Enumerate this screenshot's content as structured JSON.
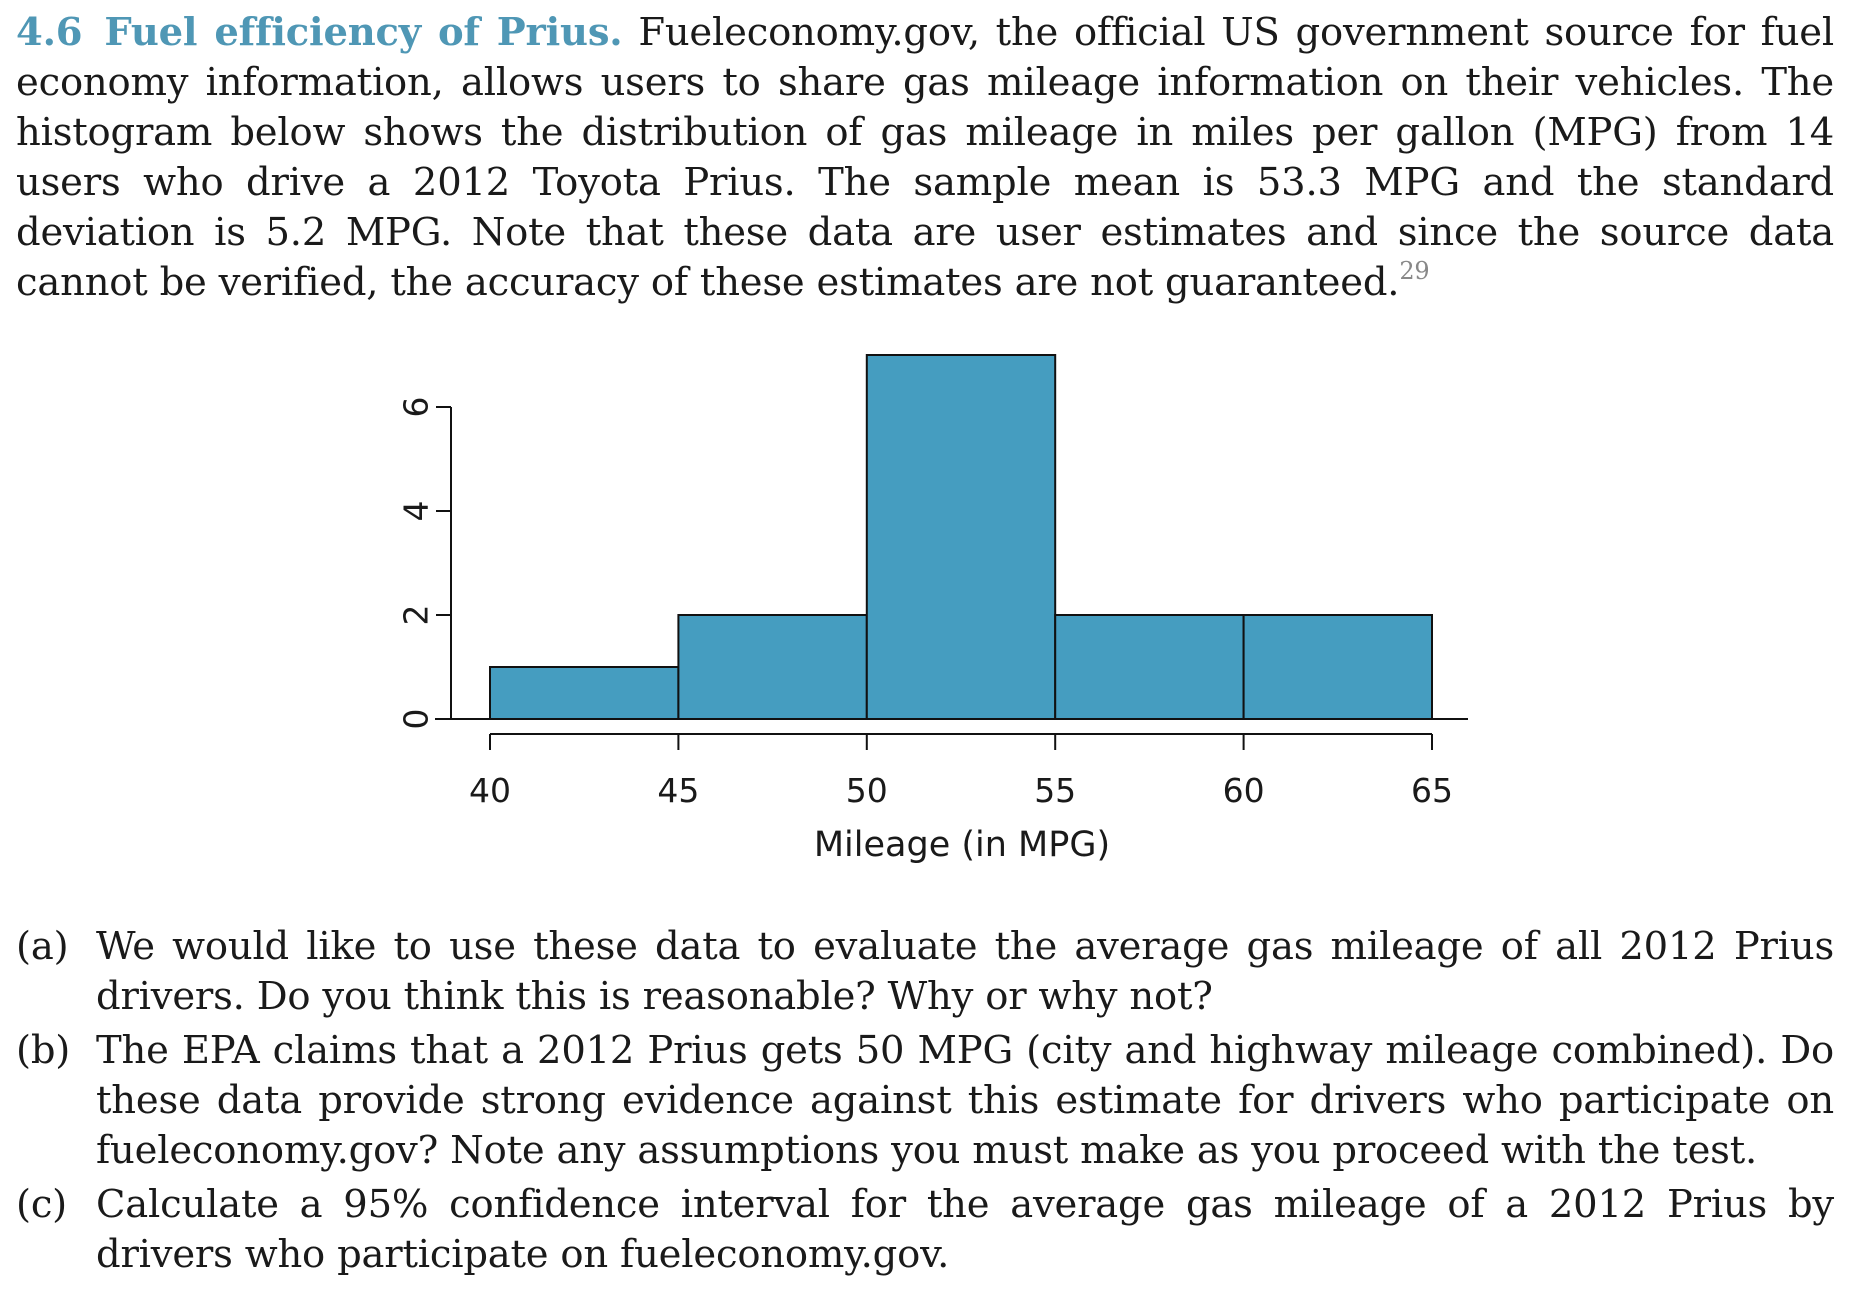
{
  "problem": {
    "number": "4.6",
    "title": "Fuel efficiency of Prius.",
    "text": "Fueleconomy.gov, the official US government source for fuel economy information, allows users to share gas mileage information on their vehicles. The histogram below shows the distribution of gas mileage in miles per gallon (MPG) from 14 users who drive a 2012 Toyota Prius. The sample mean is 53.3 MPG and the standard deviation is 5.2 MPG. Note that these data are user estimates and since the source data cannot be verified, the accuracy of these estimates are not guaranteed.",
    "footnote_mark": "29"
  },
  "chart_data": {
    "type": "bar",
    "title": "",
    "xlabel": "Mileage (in MPG)",
    "ylabel": "",
    "bins": [
      {
        "from": 40,
        "to": 45,
        "count": 1
      },
      {
        "from": 45,
        "to": 50,
        "count": 2
      },
      {
        "from": 50,
        "to": 55,
        "count": 7
      },
      {
        "from": 55,
        "to": 60,
        "count": 2
      },
      {
        "from": 60,
        "to": 65,
        "count": 2
      }
    ],
    "x_ticks": [
      "40",
      "45",
      "50",
      "55",
      "60",
      "65"
    ],
    "y_ticks": [
      "0",
      "2",
      "4",
      "6"
    ],
    "xlim": [
      40,
      65
    ],
    "ylim": [
      0,
      7
    ],
    "grid": false,
    "bar_color": "#459dc0"
  },
  "parts": [
    {
      "label": "(a)",
      "text": "We would like to use these data to evaluate the average gas mileage of all 2012 Prius drivers. Do you think this is reasonable? Why or why not?"
    },
    {
      "label": "(b)",
      "text": "The EPA claims that a 2012 Prius gets 50 MPG (city and highway mileage combined). Do these data provide strong evidence against this estimate for drivers who participate on fueleconomy.gov? Note any assumptions you must make as you proceed with the test."
    },
    {
      "label": "(c)",
      "text": "Calculate a 95% confidence interval for the average gas mileage of a 2012 Prius by drivers who participate on fueleconomy.gov."
    }
  ]
}
